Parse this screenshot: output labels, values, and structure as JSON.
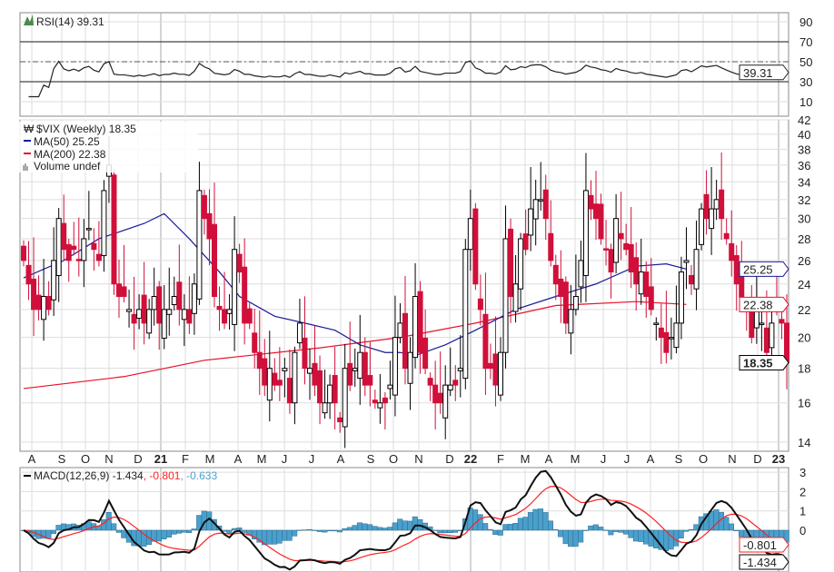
{
  "rsi_panel": {
    "label": "RSI(14) 39.31",
    "last": "39.31",
    "ticks": [
      "90",
      "70",
      "50",
      "30",
      "10"
    ]
  },
  "price_panel": {
    "label": "$VIX (Weekly) 18.35",
    "ma50_label": "MA(50) 25.25",
    "ma200_label": "MA(200) 22.38",
    "volume_label": "Volume undef",
    "last": "18.35",
    "ma50_last": "25.25",
    "ma200_last": "22.38",
    "ticks": [
      "42",
      "40",
      "38",
      "36",
      "34",
      "32",
      "30",
      "28",
      "26",
      "24",
      "22",
      "20",
      "18",
      "16",
      "14"
    ]
  },
  "x_axis": {
    "labels": [
      "A",
      "S",
      "O",
      "N",
      "D",
      "21",
      "F",
      "M",
      "A",
      "M",
      "J",
      "J",
      "A",
      "S",
      "O",
      "N",
      "D",
      "22",
      "F",
      "M",
      "A",
      "M",
      "J",
      "J",
      "A",
      "S",
      "O",
      "N",
      "D",
      "23"
    ]
  },
  "macd_panel": {
    "label_main": "MACD(12,26,9) -1.434",
    "label_signal": ", -0.801",
    "label_hist": ", -0.633",
    "macd_last": "-1.434",
    "signal_last": "-0.801",
    "ticks": [
      "3",
      "2",
      "1",
      "0"
    ]
  },
  "colors": {
    "up": "#000000",
    "down": "#d0103a",
    "ma50": "#1a1a9a",
    "ma200": "#e8102a",
    "hist": "#4aa0cc",
    "signal": "#ff2020"
  },
  "chart_data": {
    "type": "candlestick",
    "title": "$VIX (Weekly)",
    "scale": "log",
    "ylim": [
      14,
      42
    ],
    "closes": [
      26,
      24,
      22,
      22,
      23,
      22,
      26,
      30,
      27,
      26,
      27,
      26,
      28,
      29,
      27,
      26,
      33,
      36,
      24,
      23,
      23,
      22,
      21,
      22,
      21,
      22,
      23,
      21,
      22,
      22,
      23,
      22,
      22,
      21,
      24,
      33,
      30,
      28,
      23,
      22,
      21,
      22,
      27,
      25,
      21,
      21,
      19,
      18,
      17,
      18,
      17,
      17,
      18,
      16,
      19,
      21,
      18,
      18,
      17,
      16,
      16,
      17,
      16,
      15,
      18,
      17,
      18,
      19,
      17,
      17,
      16,
      16,
      16,
      17,
      20,
      21,
      18,
      19,
      23,
      19,
      18,
      17,
      16,
      16,
      17,
      17,
      17,
      18,
      27,
      30,
      24,
      22,
      18,
      18,
      17,
      19,
      28,
      23,
      24,
      28,
      27,
      31,
      32,
      32,
      30,
      26,
      24,
      23,
      21,
      22,
      23,
      26,
      33,
      31,
      30,
      28,
      27,
      25,
      30,
      28,
      27,
      25,
      24,
      25,
      23,
      22,
      21,
      20,
      19,
      20,
      21,
      25,
      26,
      24,
      27,
      31,
      30,
      31,
      32,
      30,
      28,
      26,
      24,
      23,
      22,
      20,
      22,
      21,
      19,
      21,
      22,
      21,
      18.35
    ],
    "ma50": [
      [
        0,
        24.5
      ],
      [
        8,
        26
      ],
      [
        15,
        28
      ],
      [
        24,
        29.5
      ],
      [
        28,
        30.5
      ],
      [
        33,
        28
      ],
      [
        39,
        25
      ],
      [
        43,
        23
      ],
      [
        50,
        21.5
      ],
      [
        56,
        21
      ],
      [
        62,
        20.5
      ],
      [
        67,
        19.5
      ],
      [
        72,
        19
      ],
      [
        75,
        19
      ],
      [
        78,
        18.8
      ],
      [
        84,
        19.5
      ],
      [
        90,
        20.5
      ],
      [
        98,
        22
      ],
      [
        106,
        23
      ],
      [
        114,
        24
      ],
      [
        122,
        25.5
      ],
      [
        128,
        25.7
      ],
      [
        132,
        25.25
      ]
    ],
    "ma200": [
      [
        0,
        16.8
      ],
      [
        20,
        17.5
      ],
      [
        36,
        18.5
      ],
      [
        59,
        19.3
      ],
      [
        75,
        20
      ],
      [
        90,
        21
      ],
      [
        106,
        22.3
      ],
      [
        122,
        22.6
      ],
      [
        132,
        22.38
      ]
    ]
  }
}
